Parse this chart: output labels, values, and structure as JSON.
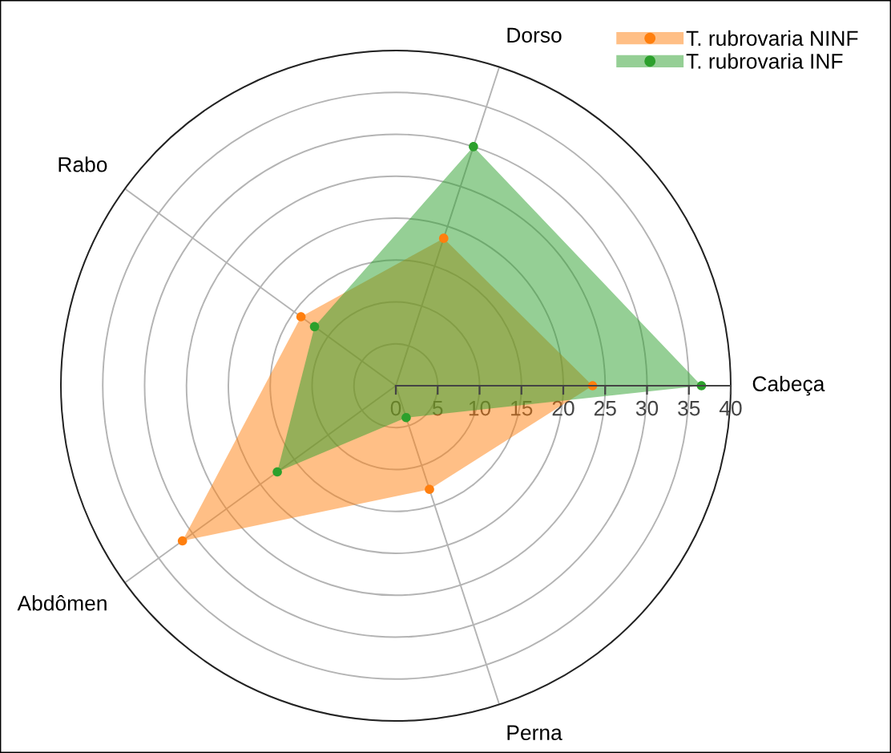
{
  "chart_data": {
    "type": "radar",
    "categories": [
      "Dorso",
      "Cabeça",
      "Perna",
      "Abdômen",
      "Rabo"
    ],
    "series": [
      {
        "name": "T. rubrovaria NINF",
        "color": "#ff7f0e",
        "values": [
          18.5,
          23.5,
          13,
          31.5,
          14
        ]
      },
      {
        "name": "T. rubrovaria INF",
        "color": "#2ca02c",
        "values": [
          30,
          36.5,
          4,
          17.5,
          12
        ]
      }
    ],
    "ylim": [
      0,
      40
    ],
    "yticks": [
      0,
      5,
      10,
      15,
      20,
      25,
      30,
      35,
      40
    ],
    "grid": true,
    "legend": "top right",
    "marker": "circle"
  }
}
